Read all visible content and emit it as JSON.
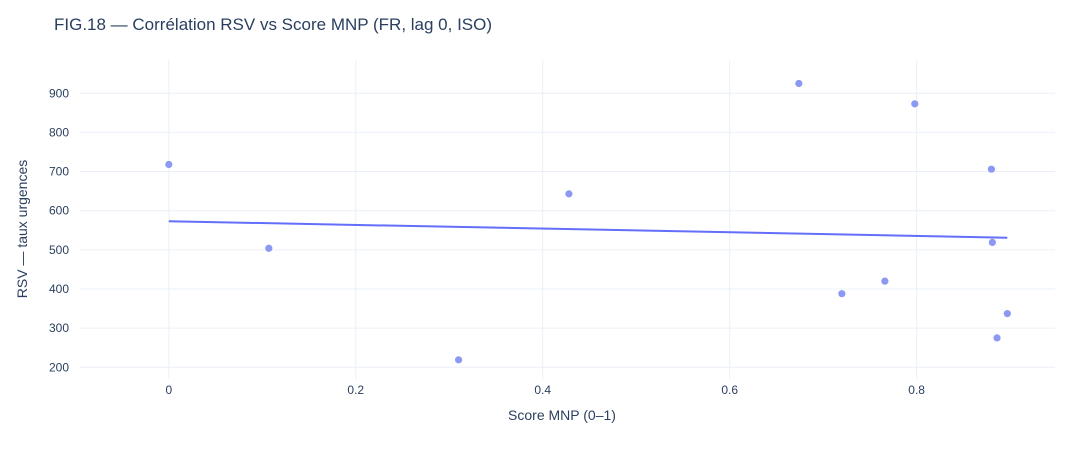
{
  "chart_data": {
    "type": "scatter",
    "title": "FIG.18 — Corrélation RSV vs Score MNP (FR, lag 0, ISO)",
    "xlabel": "Score MNP (0–1)",
    "ylabel": "RSV — taux urgences",
    "xlim": [
      -0.095,
      0.948
    ],
    "ylim": [
      170,
      985
    ],
    "x_ticks": [
      0,
      0.2,
      0.4,
      0.6,
      0.8
    ],
    "x_tick_labels": [
      "0",
      "0.2",
      "0.4",
      "0.6",
      "0.8"
    ],
    "y_ticks": [
      200,
      300,
      400,
      500,
      600,
      700,
      800,
      900
    ],
    "y_tick_labels": [
      "200",
      "300",
      "400",
      "500",
      "600",
      "700",
      "800",
      "900"
    ],
    "grid": true,
    "legend": "none",
    "series": [
      {
        "points": [
          {
            "x": 0.0,
            "y": 718
          },
          {
            "x": 0.107,
            "y": 504
          },
          {
            "x": 0.31,
            "y": 219
          },
          {
            "x": 0.428,
            "y": 643
          },
          {
            "x": 0.674,
            "y": 925
          },
          {
            "x": 0.72,
            "y": 388
          },
          {
            "x": 0.766,
            "y": 420
          },
          {
            "x": 0.798,
            "y": 873
          },
          {
            "x": 0.88,
            "y": 706
          },
          {
            "x": 0.881,
            "y": 519
          },
          {
            "x": 0.886,
            "y": 275
          },
          {
            "x": 0.897,
            "y": 337
          }
        ],
        "color": "#8c99f2"
      }
    ],
    "trendline": {
      "x": [
        0.0,
        0.897
      ],
      "y": [
        573,
        531
      ],
      "color": "#636efa"
    }
  }
}
